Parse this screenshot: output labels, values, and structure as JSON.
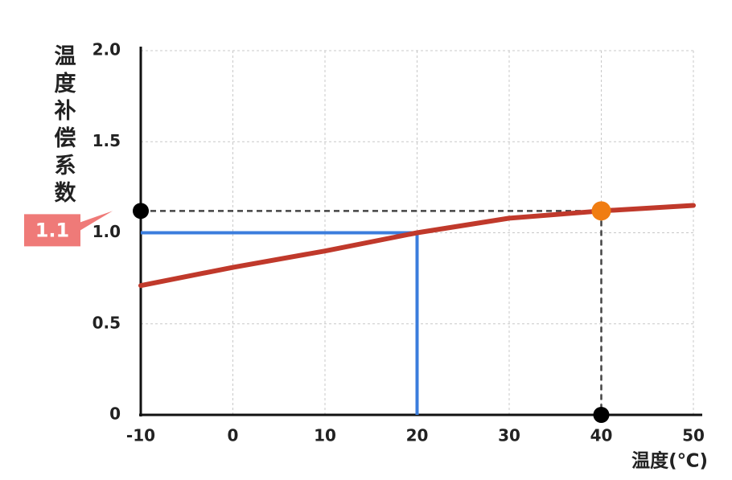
{
  "chart_data": {
    "type": "line",
    "y_label": "温度补偿系数",
    "x_label": "温度(℃)",
    "xlim": [
      -10,
      50
    ],
    "xticks": [
      -10,
      0,
      10,
      20,
      30,
      40,
      50
    ],
    "ylim": [
      0,
      2
    ],
    "yticks": [
      0,
      {
        "value": 0.5,
        "label": "0.5"
      },
      {
        "value": 1,
        "label": "1.0"
      },
      {
        "value": 1.5,
        "label": "1.5"
      },
      {
        "value": 2,
        "label": "2.0"
      }
    ],
    "grid": true,
    "series": [
      {
        "color": "#c0392b",
        "x": [
          -10,
          0,
          10,
          20,
          30,
          40,
          50
        ],
        "values": [
          0.71,
          0.81,
          0.9,
          1.0,
          1.08,
          1.12,
          1.15
        ]
      }
    ],
    "reference": {
      "x": 20,
      "y": 1.0,
      "color": "#3b7ddd"
    },
    "reading": {
      "x": 40,
      "y": 1.12,
      "label": "1.1",
      "color": "#f07d12",
      "label_color": "#ef7a78"
    }
  }
}
